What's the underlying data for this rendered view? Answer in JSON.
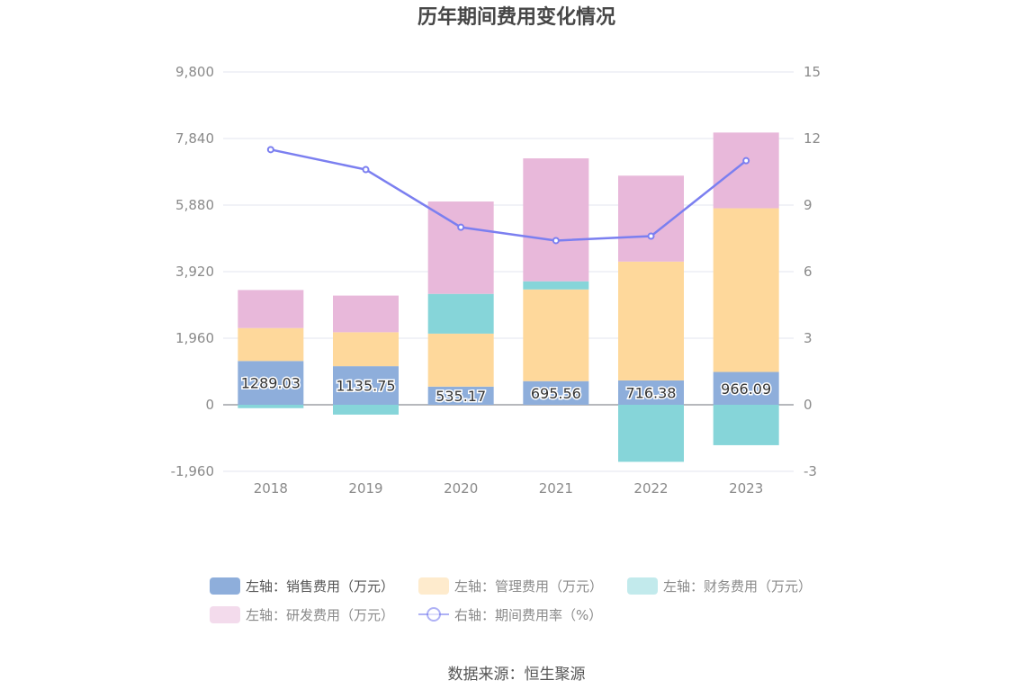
{
  "chart_data": {
    "type": "bar",
    "title": "历年期间费用变化情况",
    "categories": [
      "2018",
      "2019",
      "2020",
      "2021",
      "2022",
      "2023"
    ],
    "left_axis": {
      "ylim": [
        -1960,
        9800
      ],
      "ticks": [
        "-1,960",
        "0",
        "1,960",
        "3,920",
        "5,880",
        "7,840",
        "9,800"
      ],
      "tick_values": [
        -1960,
        0,
        1960,
        3920,
        5880,
        7840,
        9800
      ]
    },
    "right_axis": {
      "ylim": [
        -3,
        15
      ],
      "ticks": [
        "-3",
        "0",
        "3",
        "6",
        "9",
        "12",
        "15"
      ],
      "tick_values": [
        -3,
        0,
        3,
        6,
        9,
        12,
        15
      ]
    },
    "series": [
      {
        "name": "左轴：销售费用（万元）",
        "type": "bar",
        "color": "#8eaedb",
        "values": [
          1289.03,
          1135.75,
          535.17,
          695.56,
          716.38,
          966.09
        ],
        "labels": [
          "1289.03",
          "1135.75",
          "535.17",
          "695.56",
          "716.38",
          "966.09"
        ]
      },
      {
        "name": "左轴：管理费用（万元）",
        "type": "bar",
        "color": "#fed89b",
        "values": [
          970,
          1000,
          1560,
          2700,
          3500,
          4820
        ]
      },
      {
        "name": "左轴：财务费用（万元）",
        "type": "bar",
        "color": "#86d5d9",
        "values": [
          -100,
          -290,
          1170,
          240,
          -1680,
          -1190
        ]
      },
      {
        "name": "左轴：研发费用（万元）",
        "type": "bar",
        "color": "#e8b8da",
        "values": [
          1120,
          1080,
          2720,
          3620,
          2530,
          2230
        ]
      },
      {
        "name": "右轴：期间费用率（%）",
        "type": "line",
        "color": "#7b7ff0",
        "values": [
          11.5,
          10.6,
          8.0,
          7.4,
          7.6,
          11.0
        ]
      }
    ],
    "legend_position": "bottom",
    "grid": true
  },
  "source": "数据来源：恒生聚源"
}
